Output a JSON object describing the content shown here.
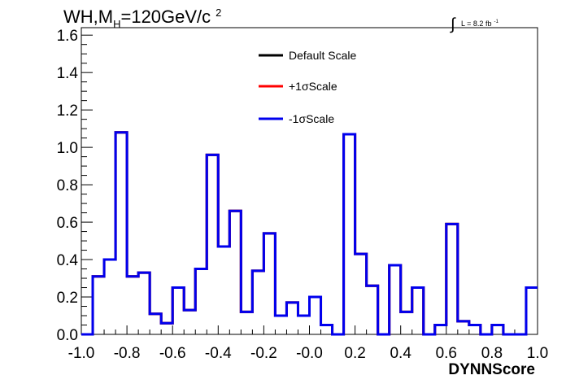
{
  "chart_data": {
    "type": "line",
    "title": {
      "main": "WH,M",
      "subscript": "H",
      "tail": "=120GeV/c",
      "superscript": "2"
    },
    "luminosity": {
      "integral_sign": "∫",
      "text": "L = 8.2 fb",
      "superscript": "-1"
    },
    "xlabel": "DYNNScore",
    "ylabel": "",
    "xlim": [
      -1.0,
      1.0
    ],
    "ylim": [
      0.0,
      1.64
    ],
    "x_ticks": [
      {
        "value": -1.0,
        "label": "-1.0"
      },
      {
        "value": -0.8,
        "label": "-0.8"
      },
      {
        "value": -0.6,
        "label": "-0.6"
      },
      {
        "value": -0.4,
        "label": "-0.4"
      },
      {
        "value": -0.2,
        "label": "-0.2"
      },
      {
        "value": 0.0,
        "label": "-0.0"
      },
      {
        "value": 0.2,
        "label": "0.2"
      },
      {
        "value": 0.4,
        "label": "0.4"
      },
      {
        "value": 0.6,
        "label": "0.6"
      },
      {
        "value": 0.8,
        "label": "0.8"
      },
      {
        "value": 1.0,
        "label": "1.0"
      }
    ],
    "y_ticks": [
      {
        "value": 0.0,
        "label": "0.0"
      },
      {
        "value": 0.2,
        "label": "0.2"
      },
      {
        "value": 0.4,
        "label": "0.4"
      },
      {
        "value": 0.6,
        "label": "0.6"
      },
      {
        "value": 0.8,
        "label": "0.8"
      },
      {
        "value": 1.0,
        "label": "1.0"
      },
      {
        "value": 1.2,
        "label": "1.2"
      },
      {
        "value": 1.4,
        "label": "1.4"
      },
      {
        "value": 1.6,
        "label": "1.6"
      }
    ],
    "bin_edges": [
      -1.0,
      -0.95,
      -0.9,
      -0.85,
      -0.8,
      -0.75,
      -0.7,
      -0.65,
      -0.6,
      -0.55,
      -0.5,
      -0.45,
      -0.4,
      -0.35,
      -0.3,
      -0.25,
      -0.2,
      -0.15,
      -0.1,
      -0.05,
      0.0,
      0.05,
      0.1,
      0.15,
      0.2,
      0.25,
      0.3,
      0.35,
      0.4,
      0.45,
      0.5,
      0.55,
      0.6,
      0.65,
      0.7,
      0.75,
      0.8,
      0.85,
      0.9,
      0.95,
      1.0
    ],
    "series": [
      {
        "name": "Default Scale",
        "color": "#000000",
        "values": [
          0.0,
          0.31,
          0.4,
          1.08,
          0.31,
          0.33,
          0.11,
          0.06,
          0.25,
          0.13,
          0.35,
          0.96,
          0.47,
          0.66,
          0.12,
          0.34,
          0.54,
          0.1,
          0.17,
          0.1,
          0.2,
          0.05,
          0.0,
          1.07,
          0.43,
          0.26,
          0.0,
          0.37,
          0.12,
          0.25,
          0.0,
          0.05,
          0.59,
          0.07,
          0.05,
          0.0,
          0.05,
          0.0,
          0.0,
          0.25
        ]
      },
      {
        "name": "+1σScale",
        "color": "#ff0000",
        "values": [
          0.0,
          0.31,
          0.4,
          1.08,
          0.31,
          0.33,
          0.11,
          0.06,
          0.25,
          0.13,
          0.35,
          0.96,
          0.47,
          0.66,
          0.12,
          0.34,
          0.54,
          0.1,
          0.17,
          0.1,
          0.2,
          0.05,
          0.0,
          1.07,
          0.43,
          0.26,
          0.0,
          0.37,
          0.12,
          0.25,
          0.0,
          0.05,
          0.59,
          0.07,
          0.05,
          0.0,
          0.05,
          0.0,
          0.0,
          0.25
        ]
      },
      {
        "name": "-1σScale",
        "color": "#0000ee",
        "values": [
          0.0,
          0.31,
          0.4,
          1.08,
          0.31,
          0.33,
          0.11,
          0.06,
          0.25,
          0.13,
          0.35,
          0.96,
          0.47,
          0.66,
          0.12,
          0.34,
          0.54,
          0.1,
          0.17,
          0.1,
          0.2,
          0.05,
          0.0,
          1.07,
          0.43,
          0.26,
          0.0,
          0.37,
          0.12,
          0.25,
          0.0,
          0.05,
          0.59,
          0.07,
          0.05,
          0.0,
          0.05,
          0.0,
          0.0,
          0.25
        ]
      }
    ],
    "legend_position": "top-center",
    "grid": false
  }
}
